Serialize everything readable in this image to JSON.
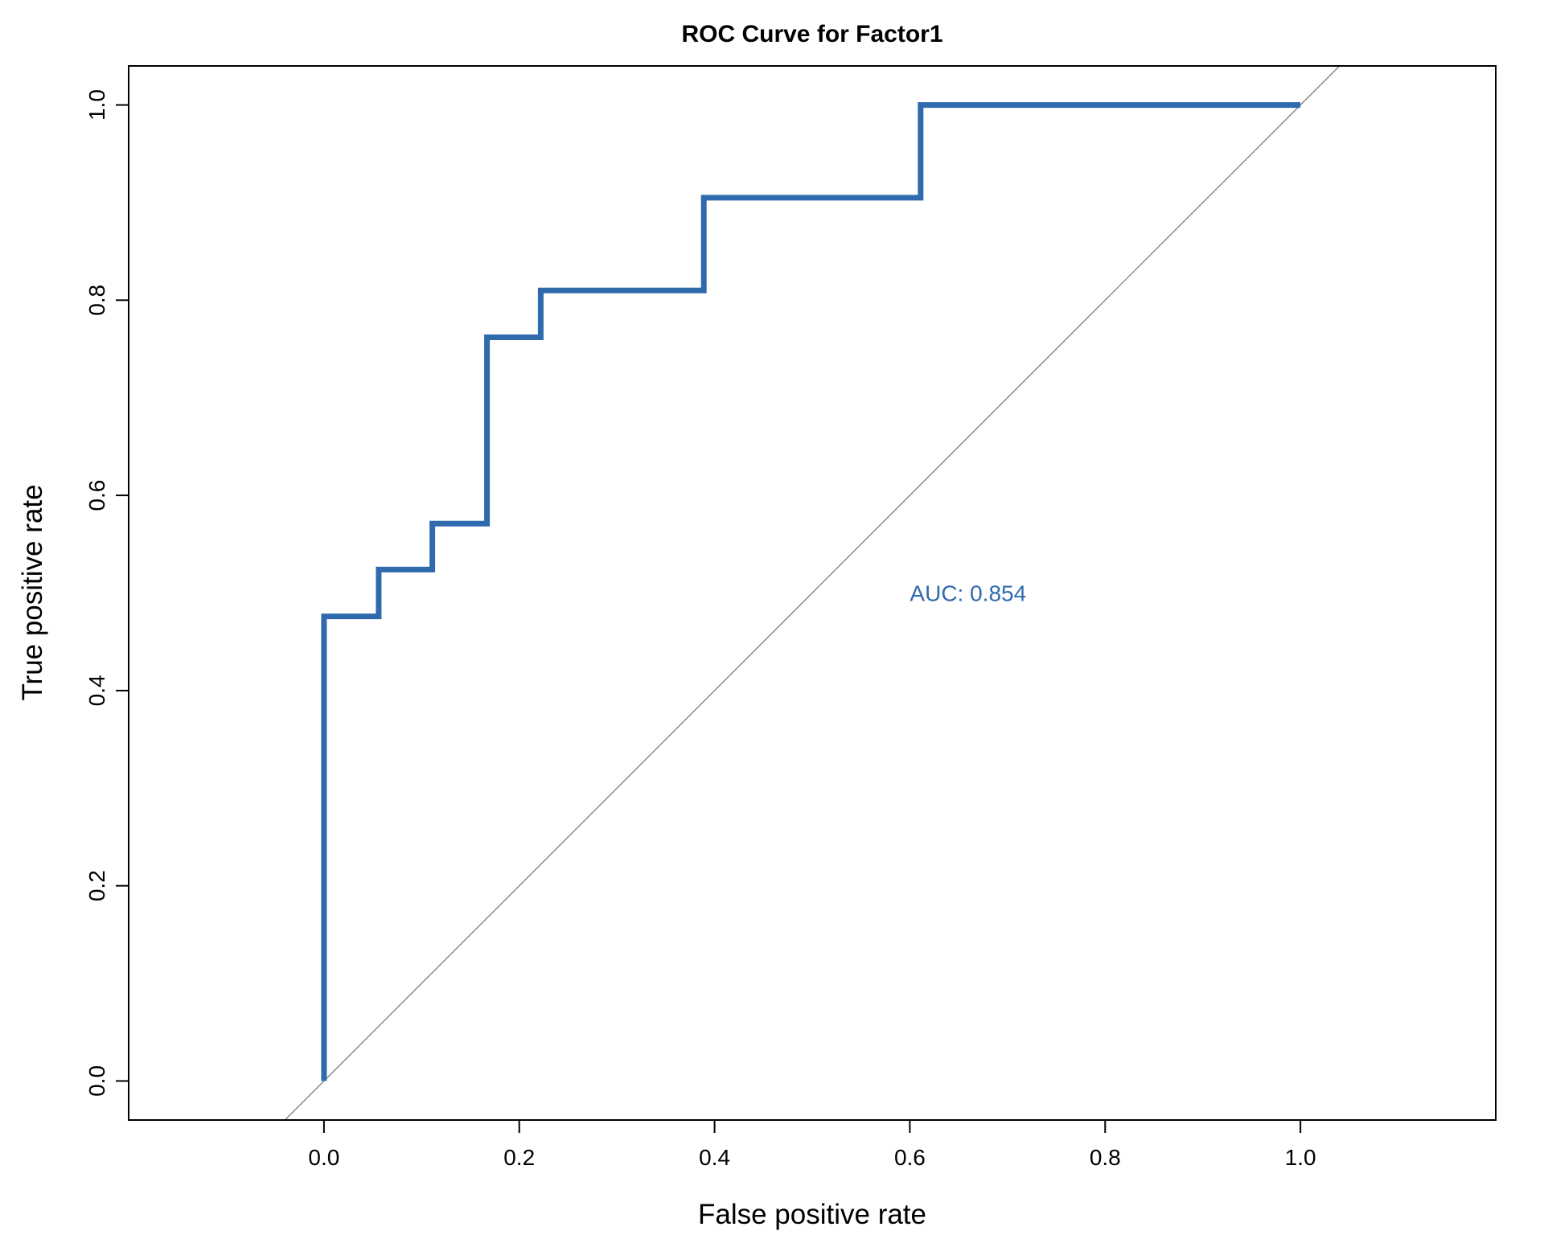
{
  "chart_data": {
    "type": "line",
    "title": "ROC Curve for Factor1",
    "xlabel": "False positive rate",
    "ylabel": "True positive rate",
    "xlim": [
      -0.2,
      1.2
    ],
    "ylim": [
      -0.04,
      1.04
    ],
    "xticks": [
      "0.0",
      "0.2",
      "0.4",
      "0.6",
      "0.8",
      "1.0"
    ],
    "yticks": [
      "0.0",
      "0.2",
      "0.4",
      "0.6",
      "0.8",
      "1.0"
    ],
    "grid": false,
    "series": [
      {
        "color": "#2f6aad",
        "x": [
          0,
          0,
          0.056,
          0.056,
          0.111,
          0.111,
          0.167,
          0.167,
          0.222,
          0.222,
          0.389,
          0.389,
          0.611,
          0.611,
          1.0
        ],
        "y": [
          0,
          0.476,
          0.476,
          0.524,
          0.524,
          0.571,
          0.571,
          0.762,
          0.762,
          0.81,
          0.81,
          0.905,
          0.905,
          1.0,
          1.0
        ]
      }
    ],
    "reference_line": {
      "type": "diagonal",
      "slope": 1,
      "intercept": 0,
      "color": "#8c8c8c"
    },
    "annotation": {
      "text": "AUC: 0.854",
      "x": 0.6,
      "y": 0.5,
      "color": "#2f6aad"
    }
  }
}
